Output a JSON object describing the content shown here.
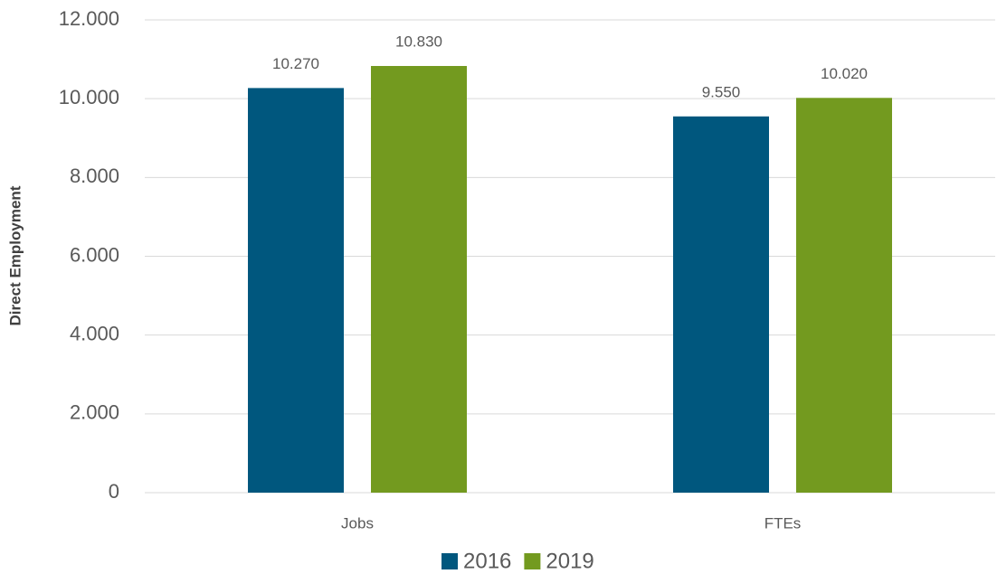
{
  "chart_data": {
    "type": "bar",
    "y_label": "Direct Employment",
    "categories": [
      "Jobs",
      "FTEs"
    ],
    "series": [
      {
        "name": "2016",
        "color": "#00577e",
        "values": [
          10270,
          9550
        ],
        "value_labels": [
          "10.270",
          "9.550"
        ]
      },
      {
        "name": "2019",
        "color": "#739a1f",
        "values": [
          10830,
          10020
        ],
        "value_labels": [
          "10.830",
          "10.020"
        ]
      }
    ],
    "ylim": [
      0,
      12000
    ],
    "yticks": [
      0,
      {
        "value": 2000,
        "label": "2.000"
      },
      {
        "value": 4000,
        "label": "4.000"
      },
      {
        "value": 6000,
        "label": "6.000"
      },
      {
        "value": 8000,
        "label": "8.000"
      },
      {
        "value": 10000,
        "label": "10.000"
      },
      {
        "value": 12000,
        "label": "12.000"
      }
    ],
    "grid": true,
    "legend": "bottom"
  }
}
